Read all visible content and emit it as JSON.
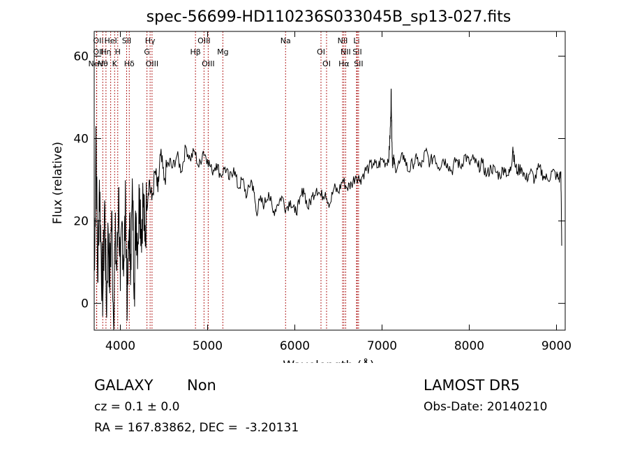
{
  "chart_data": {
    "type": "line",
    "title": "spec-56699-HD110236S033045B_sp13-027.fits",
    "xlabel": "Wavelength (Å)",
    "ylabel": "Flux (relative)",
    "xlim": [
      3700,
      9100
    ],
    "ylim": [
      -6.5,
      66
    ],
    "x_ticks": [
      4000,
      5000,
      6000,
      7000,
      8000,
      9000
    ],
    "y_ticks": [
      0,
      20,
      40,
      60
    ],
    "grid": false,
    "line_color": "#000000",
    "marker_color": "#b22222",
    "series": [
      {
        "x": [
          3705,
          3720,
          3740,
          3760,
          3780,
          3800,
          3820,
          3840,
          3860,
          3880,
          3900,
          3920,
          3940,
          3960,
          3980,
          4000,
          4020,
          4040,
          4060,
          4080,
          4100,
          4120,
          4140,
          4160,
          4180,
          4200,
          4220,
          4240,
          4260,
          4280,
          4300,
          4330,
          4360,
          4400,
          4430,
          4460,
          4500,
          4550,
          4600,
          4650,
          4700,
          4750,
          4800,
          4850,
          4900,
          4950,
          5000,
          5050,
          5100,
          5150,
          5200,
          5250,
          5300,
          5350,
          5400,
          5450,
          5500,
          5530,
          5560,
          5600,
          5650,
          5700,
          5750,
          5800,
          5850,
          5900,
          5950,
          6000,
          6050,
          6100,
          6150,
          6200,
          6250,
          6300,
          6350,
          6400,
          6450,
          6500,
          6550,
          6600,
          6650,
          6700,
          6750,
          6800,
          6850,
          6900,
          6950,
          7000,
          7050,
          7080,
          7090,
          7100,
          7105,
          7110,
          7115,
          7120,
          7130,
          7150,
          7200,
          7250,
          7300,
          7350,
          7400,
          7450,
          7500,
          7550,
          7600,
          7650,
          7700,
          7750,
          7800,
          7850,
          7900,
          7950,
          8000,
          8050,
          8100,
          8150,
          8200,
          8250,
          8300,
          8350,
          8400,
          8450,
          8480,
          8500,
          8520,
          8550,
          8600,
          8650,
          8700,
          8750,
          8800,
          8850,
          8900,
          8950,
          9000,
          9030,
          9050,
          9060
        ],
        "values": [
          8,
          43,
          5,
          30,
          12,
          2,
          25,
          -2,
          18,
          5,
          22,
          -3,
          15,
          8,
          28,
          3,
          20,
          10,
          24,
          -1,
          18,
          12,
          26,
          5,
          22,
          15,
          28,
          18,
          26,
          15,
          24,
          30,
          25,
          32,
          27,
          36,
          30,
          34,
          33,
          36,
          32,
          38,
          35,
          37,
          33,
          37,
          35,
          32,
          34,
          31,
          33,
          30,
          33,
          28,
          30,
          26,
          30,
          27,
          22,
          25,
          24,
          27,
          22,
          24,
          26,
          23,
          25,
          22,
          24,
          28,
          23,
          26,
          28,
          26,
          27,
          24,
          28,
          27,
          30,
          28,
          29,
          31,
          30,
          32,
          33,
          34,
          33,
          35,
          34,
          36,
          40,
          45,
          52,
          44,
          38,
          34,
          35,
          33,
          34,
          36,
          32,
          34,
          35,
          33,
          37,
          34,
          36,
          33,
          35,
          34,
          32,
          35,
          33,
          36,
          34,
          35,
          33,
          34,
          31,
          33,
          32,
          31,
          33,
          31,
          33,
          38,
          34,
          32,
          33,
          30,
          32,
          30,
          33,
          31,
          30,
          32,
          31,
          30,
          32,
          14
        ],
        "line_color": "#000000"
      }
    ],
    "lines": [
      {
        "label": "NeV",
        "x": 3426,
        "row": 3,
        "side": "left"
      },
      {
        "label": "OII",
        "x": 3727,
        "row": 1,
        "side": "left"
      },
      {
        "label": "OII",
        "x": 3729,
        "row": 2,
        "side": "left"
      },
      {
        "label": "Hη",
        "x": 3835,
        "row": 2
      },
      {
        "label": "Hθ",
        "x": 3798,
        "row": 3
      },
      {
        "label": "HeI",
        "x": 3889,
        "row": 1
      },
      {
        "label": "H",
        "x": 3970,
        "row": 2
      },
      {
        "label": "K",
        "x": 3934,
        "row": 3
      },
      {
        "label": "SII",
        "x": 4072,
        "row": 1
      },
      {
        "label": "Hδ",
        "x": 4102,
        "row": 3
      },
      {
        "label": "Hγ",
        "x": 4341,
        "row": 1
      },
      {
        "label": "G",
        "x": 4305,
        "row": 2
      },
      {
        "label": "OIII",
        "x": 4363,
        "row": 3
      },
      {
        "label": "Hβ",
        "x": 4861,
        "row": 2
      },
      {
        "label": "OIII",
        "x": 4959,
        "row": 1
      },
      {
        "label": "OIII",
        "x": 5007,
        "row": 3
      },
      {
        "label": "Mg",
        "x": 5175,
        "row": 2
      },
      {
        "label": "Na",
        "x": 5894,
        "row": 1
      },
      {
        "label": "OI",
        "x": 6300,
        "row": 2
      },
      {
        "label": "OI",
        "x": 6364,
        "row": 3
      },
      {
        "label": "NII",
        "x": 6548,
        "row": 1
      },
      {
        "label": "NII",
        "x": 6583,
        "row": 2
      },
      {
        "label": "Hα",
        "x": 6563,
        "row": 3
      },
      {
        "label": "Li",
        "x": 6708,
        "row": 1
      },
      {
        "label": "SII",
        "x": 6716,
        "row": 2
      },
      {
        "label": "SII",
        "x": 6731,
        "row": 3
      }
    ]
  },
  "footer": {
    "class_label": "GALAXY",
    "subclass": "Non",
    "survey": "LAMOST DR5",
    "cz": "cz = 0.1 ± 0.0",
    "obs_date": "Obs-Date: 20140210",
    "coords": "RA = 167.83862, DEC =  -3.20131"
  }
}
